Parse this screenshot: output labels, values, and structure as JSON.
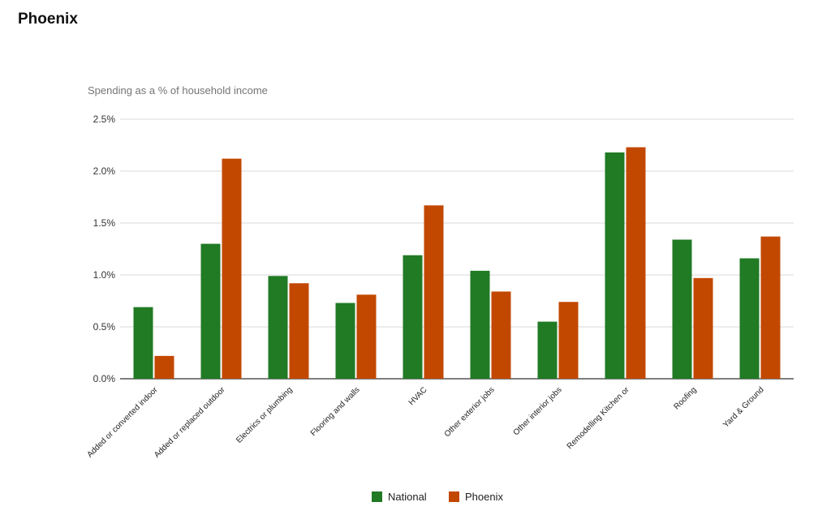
{
  "page": {
    "title": "Phoenix"
  },
  "chart_data": {
    "type": "bar",
    "title": "",
    "subtitle": "Spending as a % of household income",
    "xlabel": "",
    "ylabel": "",
    "ylim": [
      0,
      2.5
    ],
    "y_ticks": [
      "0.0%",
      "0.5%",
      "1.0%",
      "1.5%",
      "2.0%",
      "2.5%"
    ],
    "y_tick_values": [
      0,
      0.5,
      1.0,
      1.5,
      2.0,
      2.5
    ],
    "grid": true,
    "legend_position": "bottom",
    "categories": [
      "Added or converted indoor",
      "Added or replaced outdoor",
      "Electrics or plumbing",
      "Flooring and walls",
      "HVAC",
      "Other exterior jobs",
      "Other interior jobs",
      "Remodelling Kitchen or",
      "Roofing",
      "Yard & Ground"
    ],
    "series": [
      {
        "name": "National",
        "color": "#217a24",
        "values": [
          0.69,
          1.3,
          0.99,
          0.73,
          1.19,
          1.04,
          0.55,
          2.18,
          1.34,
          1.16
        ]
      },
      {
        "name": "Phoenix",
        "color": "#c24800",
        "values": [
          0.22,
          2.12,
          0.92,
          0.81,
          1.67,
          0.84,
          0.74,
          2.23,
          0.97,
          1.37
        ]
      }
    ]
  }
}
